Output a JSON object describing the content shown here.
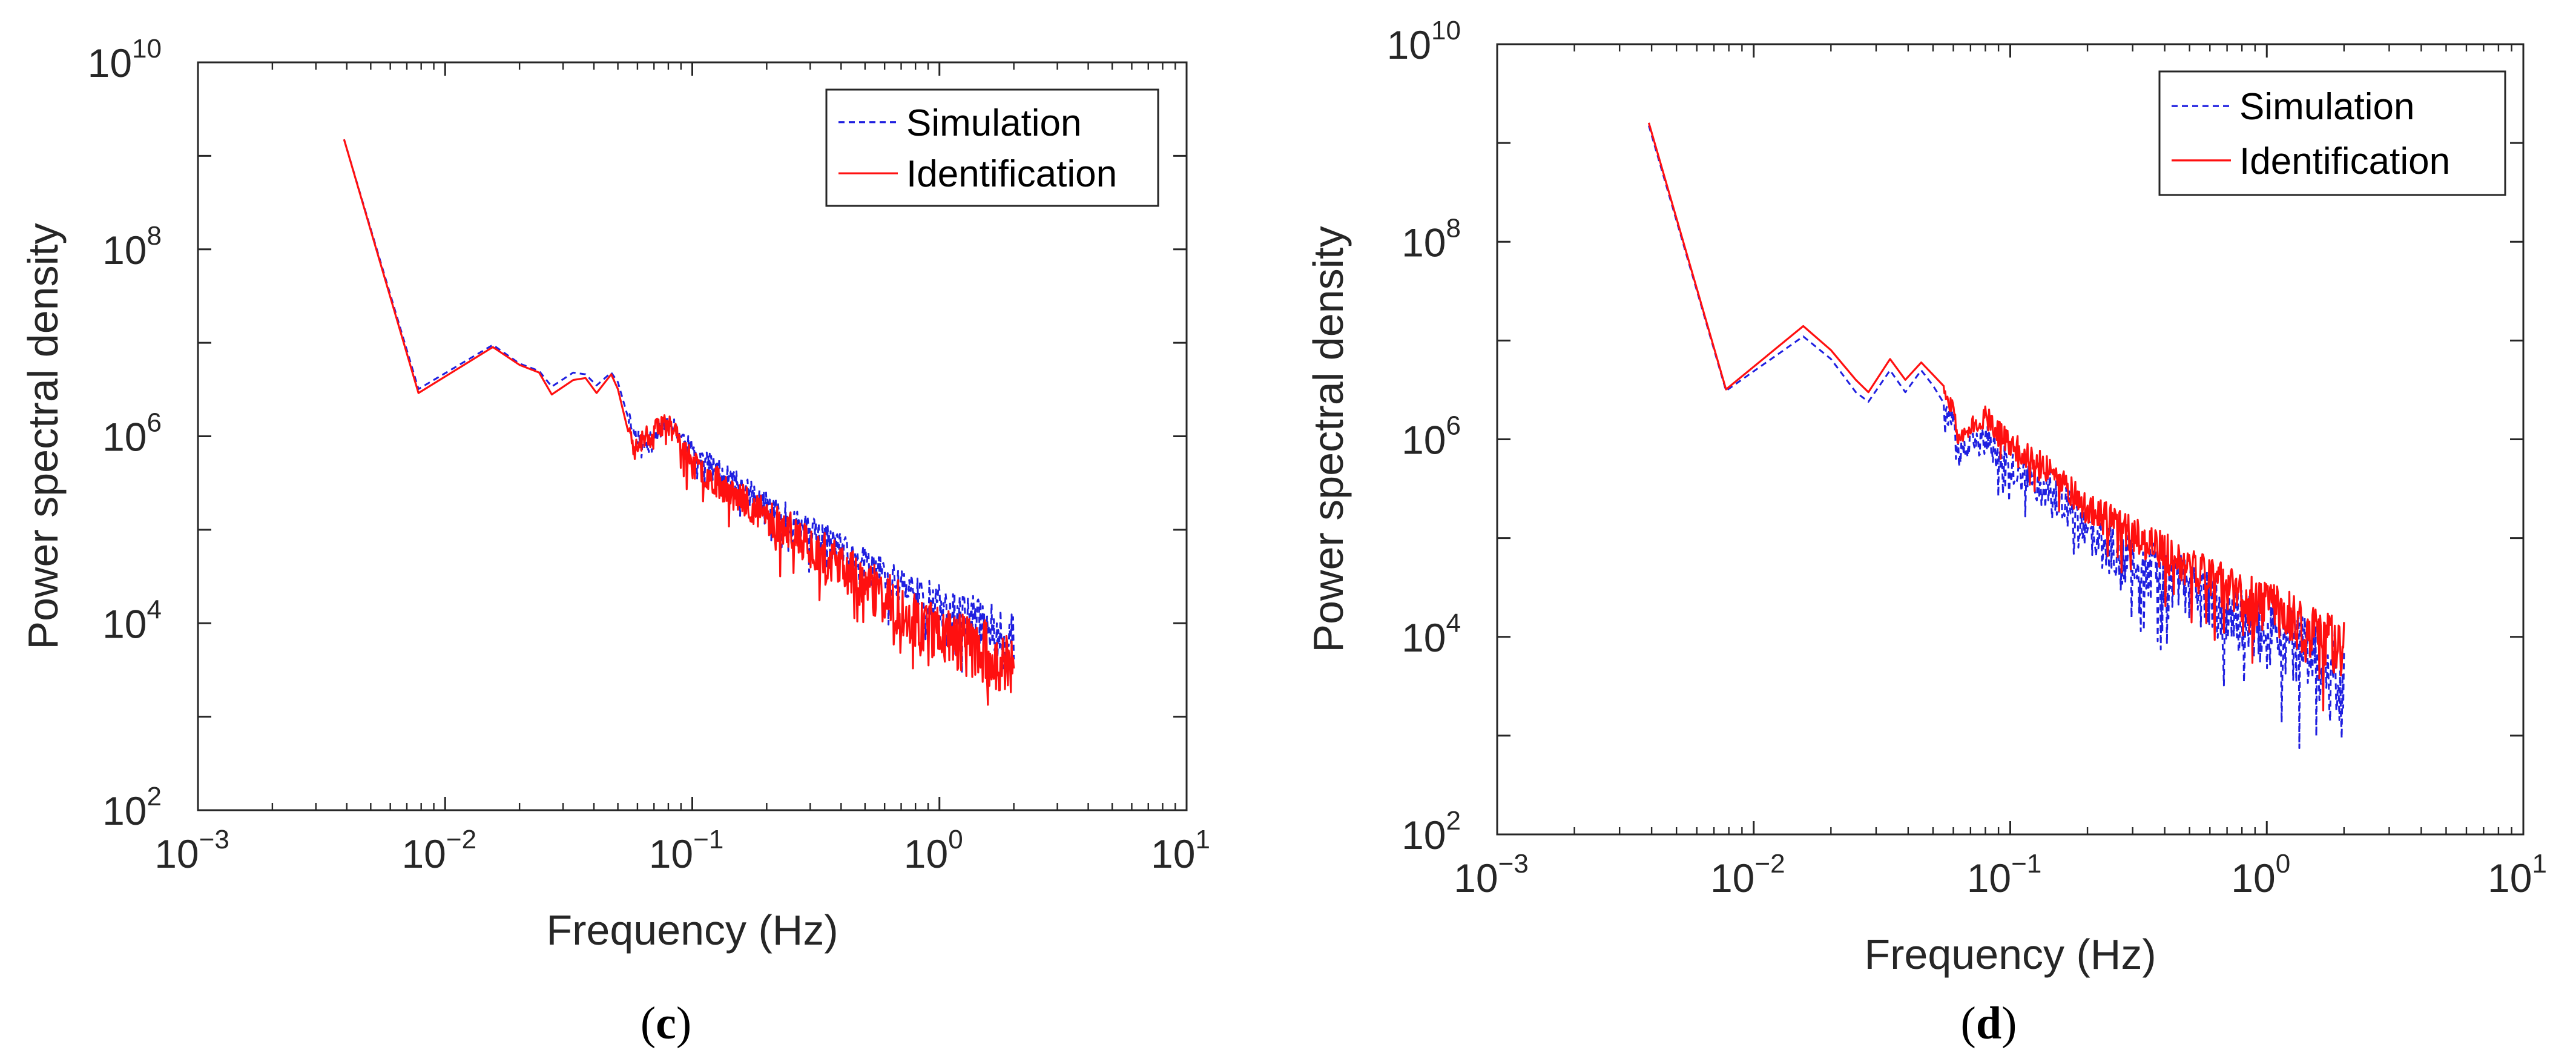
{
  "chart_data": [
    {
      "type": "line",
      "panel": "c",
      "caption_open": "(",
      "caption_letter": "c",
      "caption_close": ")",
      "xlabel": "Frequency (Hz)",
      "ylabel": "Power spectral density",
      "xscale": "log",
      "yscale": "log",
      "xlim": [
        0.001,
        10
      ],
      "ylim": [
        100,
        10000000000
      ],
      "xticks": [
        {
          "base": "10",
          "exp": "−3"
        },
        {
          "base": "10",
          "exp": "−2"
        },
        {
          "base": "10",
          "exp": "−1"
        },
        {
          "base": "10",
          "exp": "0"
        },
        {
          "base": "10",
          "exp": "1"
        }
      ],
      "yticks": [
        {
          "base": "10",
          "exp": "2"
        },
        {
          "base": "10",
          "exp": "4"
        },
        {
          "base": "10",
          "exp": "6"
        },
        {
          "base": "10",
          "exp": "8"
        },
        {
          "base": "10",
          "exp": "10"
        }
      ],
      "legend_position": "top-right",
      "grid": false,
      "series": [
        {
          "name": "Simulation",
          "style": "dashed",
          "color": "#1f1fe0",
          "anchors": [
            [
              0.0039,
              1500000000.0
            ],
            [
              0.0078,
              3200000.0
            ],
            [
              0.0156,
              9500000.0
            ],
            [
              0.02,
              6000000.0
            ],
            [
              0.024,
              5000000.0
            ],
            [
              0.027,
              3400000.0
            ],
            [
              0.033,
              4800000.0
            ],
            [
              0.037,
              4600000.0
            ],
            [
              0.041,
              3500000.0
            ],
            [
              0.047,
              4800000.0
            ],
            [
              0.05,
              3800000.0
            ],
            [
              0.058,
              1100000.0
            ],
            [
              0.065,
              800000.0
            ],
            [
              0.08,
              1500000.0
            ],
            [
              0.1,
              700000.0
            ],
            [
              0.2,
              180000.0
            ],
            [
              0.4,
              60000.0
            ],
            [
              0.7,
              25000.0
            ],
            [
              1.0,
              15000.0
            ],
            [
              1.5,
              10000.0
            ],
            [
              2.0,
              7000.0
            ]
          ],
          "noise": 0.22,
          "seed": 11
        },
        {
          "name": "Identification",
          "style": "solid",
          "color": "#ff1010",
          "anchors": [
            [
              0.0039,
              1500000000.0
            ],
            [
              0.0078,
              2900000.0
            ],
            [
              0.0156,
              9000000.0
            ],
            [
              0.02,
              5800000.0
            ],
            [
              0.024,
              4800000.0
            ],
            [
              0.027,
              2800000.0
            ],
            [
              0.033,
              4000000.0
            ],
            [
              0.037,
              4200000.0
            ],
            [
              0.041,
              2900000.0
            ],
            [
              0.047,
              4600000.0
            ],
            [
              0.05,
              3200000.0
            ],
            [
              0.058,
              700000.0
            ],
            [
              0.065,
              1000000.0
            ],
            [
              0.08,
              1400000.0
            ],
            [
              0.1,
              500000.0
            ],
            [
              0.2,
              140000.0
            ],
            [
              0.4,
              40000.0
            ],
            [
              0.7,
              14000.0
            ],
            [
              1.0,
              8000.0
            ],
            [
              1.5,
              5000.0
            ],
            [
              2.0,
              3000.0
            ]
          ],
          "noise": 0.3,
          "seed": 23
        }
      ]
    },
    {
      "type": "line",
      "panel": "d",
      "caption_open": "(",
      "caption_letter": "d",
      "caption_close": ")",
      "xlabel": "Frequency (Hz)",
      "ylabel": "Power spectral density",
      "xscale": "log",
      "yscale": "log",
      "xlim": [
        0.001,
        10
      ],
      "ylim": [
        100,
        10000000000
      ],
      "xticks": [
        {
          "base": "10",
          "exp": "−3"
        },
        {
          "base": "10",
          "exp": "−2"
        },
        {
          "base": "10",
          "exp": "−1"
        },
        {
          "base": "10",
          "exp": "0"
        },
        {
          "base": "10",
          "exp": "1"
        }
      ],
      "yticks": [
        {
          "base": "10",
          "exp": "2"
        },
        {
          "base": "10",
          "exp": "4"
        },
        {
          "base": "10",
          "exp": "6"
        },
        {
          "base": "10",
          "exp": "8"
        },
        {
          "base": "10",
          "exp": "10"
        }
      ],
      "legend_position": "top-right",
      "grid": false,
      "series": [
        {
          "name": "Simulation",
          "style": "dashed",
          "color": "#1f1fe0",
          "anchors": [
            [
              0.0039,
              1500000000.0
            ],
            [
              0.0078,
              3100000.0
            ],
            [
              0.0156,
              11000000.0
            ],
            [
              0.02,
              6500000.0
            ],
            [
              0.025,
              3000000.0
            ],
            [
              0.028,
              2400000.0
            ],
            [
              0.034,
              5000000.0
            ],
            [
              0.039,
              3000000.0
            ],
            [
              0.045,
              5000000.0
            ],
            [
              0.05,
              3500000.0
            ],
            [
              0.06,
              1400000.0
            ],
            [
              0.062,
              700000.0
            ],
            [
              0.08,
              1000000.0
            ],
            [
              0.1,
              500000.0
            ],
            [
              0.15,
              280000.0
            ],
            [
              0.2,
              100000.0
            ],
            [
              0.3,
              60000.0
            ],
            [
              0.5,
              30000.0
            ],
            [
              0.7,
              18000.0
            ],
            [
              1.0,
              11000.0
            ],
            [
              1.5,
              6000.0
            ],
            [
              2.0,
              4000.0
            ]
          ],
          "noise": 0.35,
          "seed": 37
        },
        {
          "name": "Identification",
          "style": "solid",
          "color": "#ff1010",
          "anchors": [
            [
              0.0039,
              1600000000.0
            ],
            [
              0.0078,
              3200000.0
            ],
            [
              0.0156,
              14000000.0
            ],
            [
              0.02,
              8000000.0
            ],
            [
              0.025,
              4000000.0
            ],
            [
              0.028,
              3000000.0
            ],
            [
              0.034,
              6500000.0
            ],
            [
              0.039,
              4000000.0
            ],
            [
              0.045,
              6000000.0
            ],
            [
              0.05,
              4500000.0
            ],
            [
              0.06,
              2000000.0
            ],
            [
              0.062,
              1100000.0
            ],
            [
              0.08,
              1700000.0
            ],
            [
              0.1,
              900000.0
            ],
            [
              0.15,
              450000.0
            ],
            [
              0.2,
              200000.0
            ],
            [
              0.3,
              110000.0
            ],
            [
              0.5,
              50000.0
            ],
            [
              0.7,
              30000.0
            ],
            [
              1.0,
              20000.0
            ],
            [
              1.5,
              12000.0
            ],
            [
              2.0,
              7000.0
            ]
          ],
          "noise": 0.25,
          "seed": 51
        }
      ]
    }
  ]
}
